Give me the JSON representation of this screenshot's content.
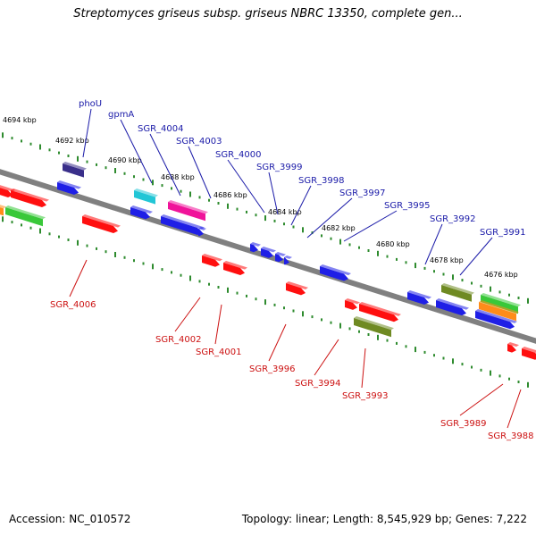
{
  "title": "Streptomyces griseus subsp. griseus NBRC 13350, complete gen...",
  "footer": {
    "accession": "Accession: NC_010572",
    "summary": "Topology: linear; Length: 8,545,929 bp; Genes: 7,222"
  },
  "colors": {
    "backbone": "#808080",
    "top_label": "#1a1aa8",
    "bottom_label": "#cc1111",
    "tick": "#2e8b2e",
    "blue": "#1f1fe6",
    "red": "#ff0f0f",
    "navy": "#3a2f8a",
    "cyan": "#22c6d6",
    "magenta": "#f0139a",
    "olive": "#6f8a22",
    "green": "#39c839",
    "orange": "#ff8c1a"
  },
  "kbp_ticks": [
    "4694 kbp",
    "4692 kbp",
    "4690 kbp",
    "4688 kbp",
    "4686 kbp",
    "4684 kbp",
    "4682 kbp",
    "4680 kbp",
    "4678 kbp",
    "4676 kbp"
  ],
  "top_gene_labels": [
    "phoU",
    "gpmA",
    "SGR_4004",
    "SGR_4003",
    "SGR_4000",
    "SGR_3999",
    "SGR_3998",
    "SGR_3997",
    "SGR_3995",
    "SGR_3992",
    "SGR_3991"
  ],
  "bottom_gene_labels": [
    "SGR_4006",
    "SGR_4002",
    "SGR_4001",
    "SGR_3996",
    "SGR_3994",
    "SGR_3993",
    "SGR_3989",
    "SGR_3988"
  ]
}
